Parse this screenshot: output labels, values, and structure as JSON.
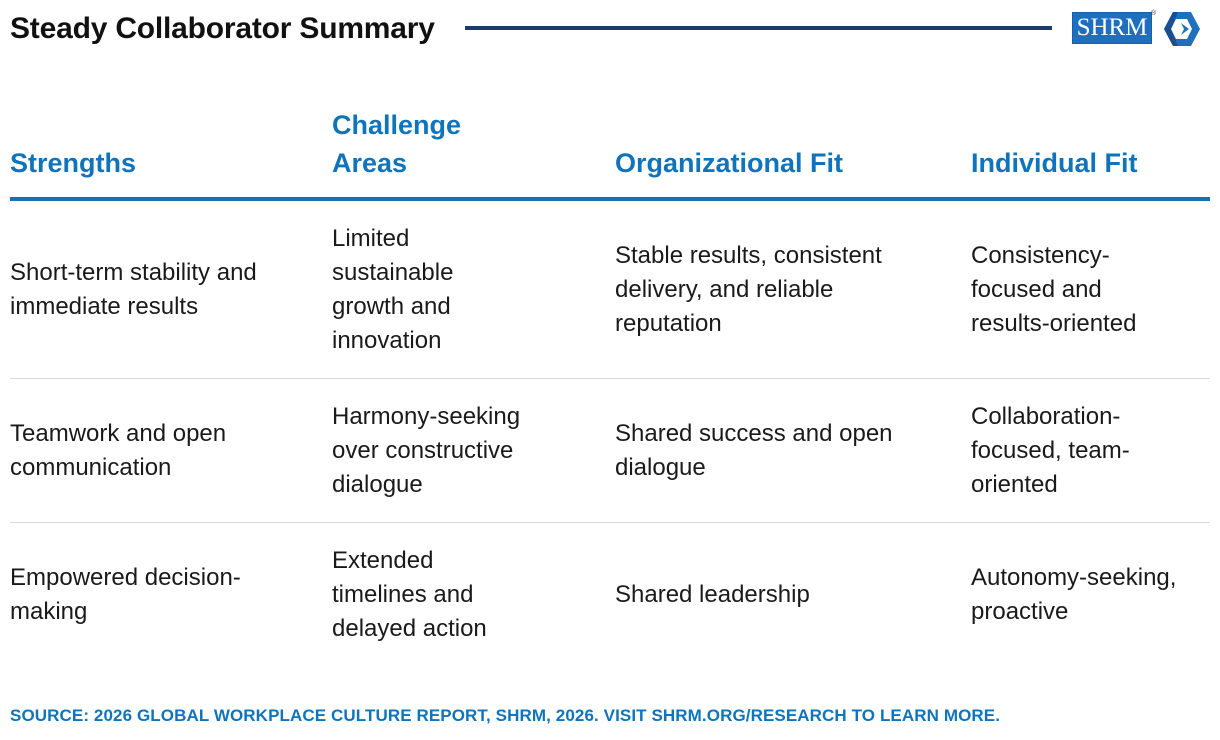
{
  "header": {
    "title": "Steady Collaborator Summary",
    "logo_text": "SHRM",
    "logo_registered": "®",
    "brand_color": "#1f6fbf",
    "rule_color": "#1d3c6e"
  },
  "table": {
    "accent_color": "#0f74bb",
    "columns": [
      "Strengths",
      "Challenge Areas",
      "Organizational Fit",
      "Individual Fit"
    ],
    "rows": [
      [
        "Short-term stability and immediate results",
        "Limited sustainable growth and innovation",
        "Stable results, consistent delivery, and reliable reputation",
        "Consistency-focused and results-oriented"
      ],
      [
        "Teamwork and open communication",
        "Harmony-seeking over constructive dialogue",
        "Shared success and open dialogue",
        "Collaboration-focused, team-oriented"
      ],
      [
        "Empowered decision-making",
        "Extended timelines and delayed action",
        "Shared leadership",
        "Autonomy-seeking, proactive"
      ]
    ]
  },
  "footer": {
    "source": "SOURCE: 2026 GLOBAL WORKPLACE CULTURE REPORT, SHRM, 2026. VISIT SHRM.ORG/RESEARCH TO LEARN MORE."
  }
}
